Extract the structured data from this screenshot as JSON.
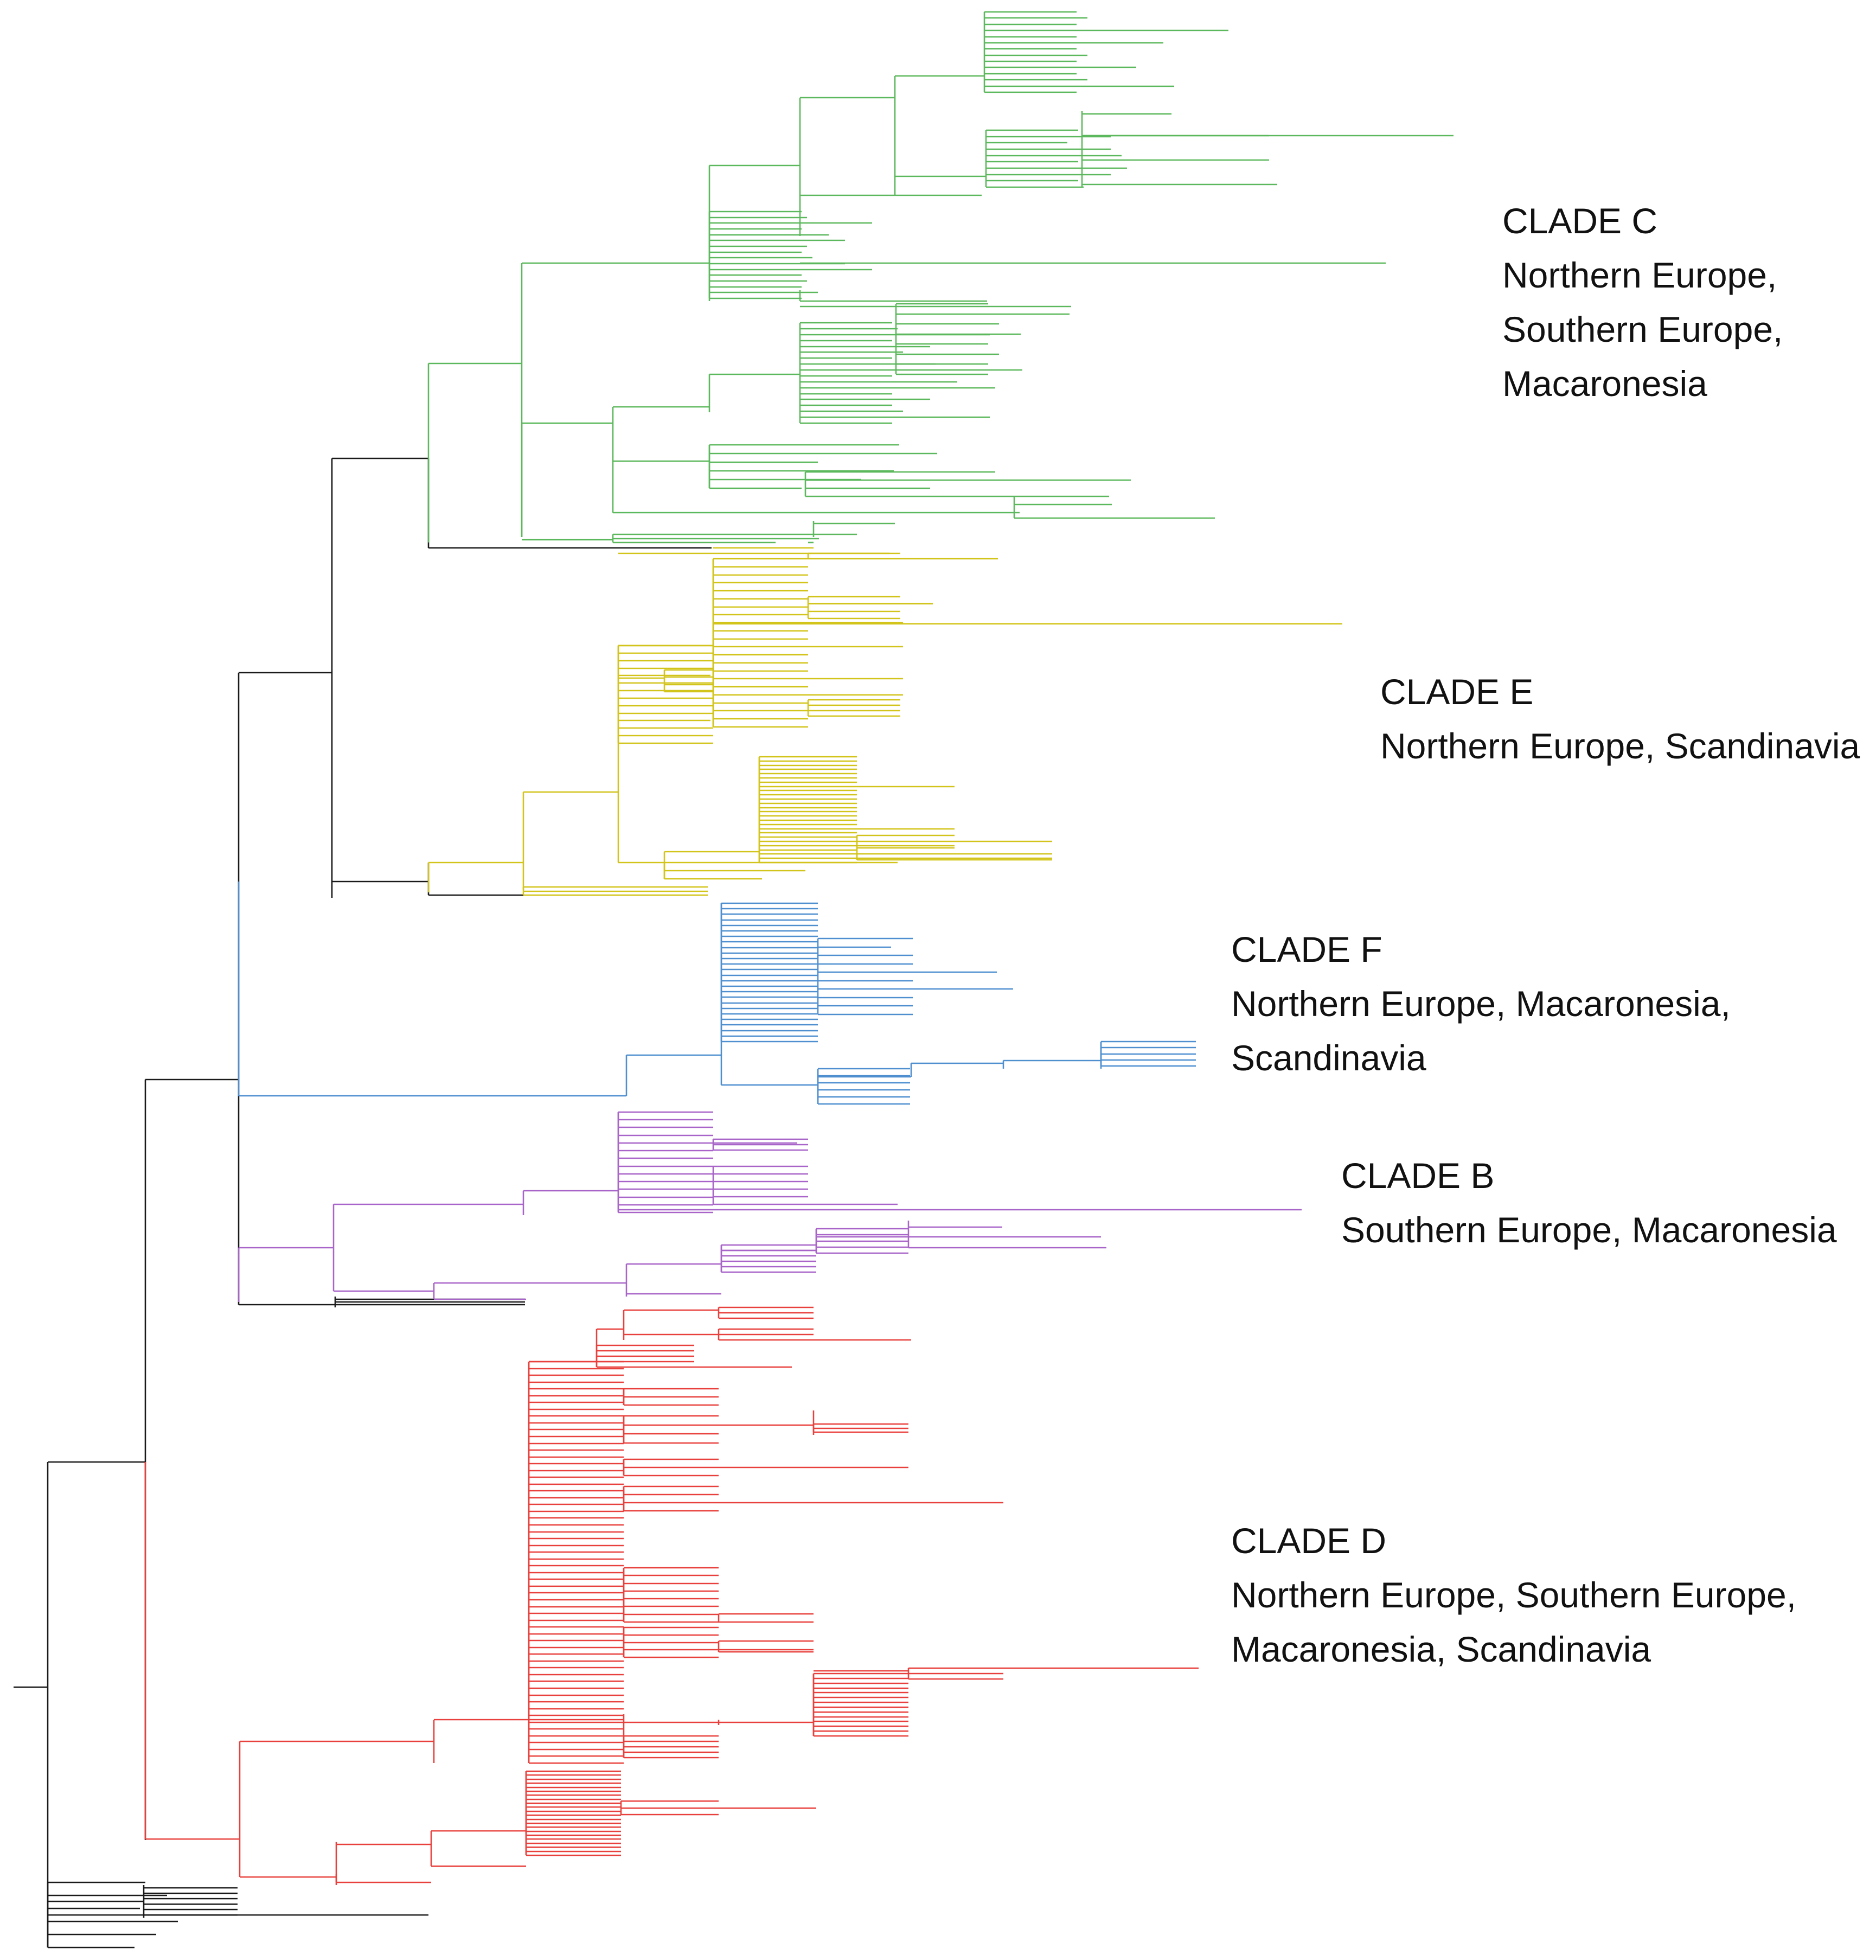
{
  "figure": {
    "type": "phylogenetic-tree",
    "colors": {
      "backbone": "#1a1a1a",
      "clade_c": "#5cb85c",
      "clade_e": "#d2c41a",
      "clade_f": "#4f8fd0",
      "clade_b": "#a864c8",
      "clade_d": "#e8413d"
    }
  },
  "clades": [
    {
      "id": "C",
      "name": "CLADE C",
      "regions": [
        "Northern Europe,",
        "Southern Europe,",
        "Macaronesia"
      ]
    },
    {
      "id": "E",
      "name": "CLADE E",
      "regions": [
        "Northern Europe, Scandinavia"
      ]
    },
    {
      "id": "F",
      "name": "CLADE F",
      "regions": [
        "Northern Europe, Macaronesia,",
        "Scandinavia"
      ]
    },
    {
      "id": "B",
      "name": "CLADE B",
      "regions": [
        "Southern Europe, Macaronesia"
      ]
    },
    {
      "id": "D",
      "name": "CLADE D",
      "regions": [
        "Northern Europe, Southern Europe,",
        "Macaronesia, Scandinavia"
      ]
    }
  ]
}
